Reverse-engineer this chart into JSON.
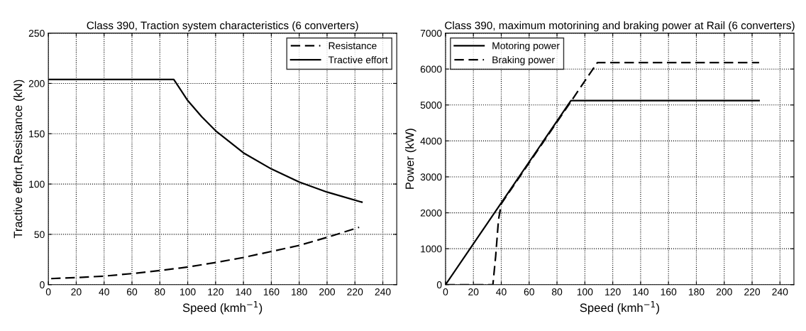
{
  "chart_data": [
    {
      "type": "line",
      "title": "Class 390, Traction system characteristics (6 converters)",
      "xlabel": "Speed (kmh$^{−1}$)",
      "ylabel": "Tractive effort,Resistance (kN)",
      "xlim": [
        0,
        250
      ],
      "xticks": [
        0,
        20,
        40,
        60,
        80,
        100,
        120,
        140,
        160,
        180,
        200,
        220,
        240
      ],
      "ylim": [
        0,
        250
      ],
      "yticks": [
        0,
        50,
        100,
        150,
        200,
        250
      ],
      "grid": true,
      "legend": "top right",
      "series": [
        {
          "name": "Resistance",
          "color": "#000000",
          "line_style": "dashed",
          "x": [
            2,
            20,
            40,
            60,
            80,
            100,
            120,
            140,
            160,
            180,
            200,
            223
          ],
          "values": [
            6,
            7,
            8.5,
            11,
            14,
            17.5,
            22,
            27,
            33,
            39,
            47,
            57
          ]
        },
        {
          "name": "Tractive effort",
          "color": "#000000",
          "line_style": "solid",
          "x": [
            0,
            90,
            100,
            110,
            120,
            140,
            160,
            180,
            200,
            225
          ],
          "values": [
            204,
            204,
            183,
            167,
            153,
            131,
            115,
            102,
            92,
            82
          ]
        }
      ]
    },
    {
      "type": "line",
      "title": "Class 390, maximum motorining and braking power at Rail (6 converters)",
      "xlabel": "Speed (kmh$^{−1}$)",
      "ylabel": "Power (kW)",
      "xlim": [
        0,
        250
      ],
      "xticks": [
        0,
        20,
        40,
        60,
        80,
        100,
        120,
        140,
        160,
        180,
        200,
        220,
        240
      ],
      "ylim": [
        0,
        7000
      ],
      "yticks": [
        0,
        1000,
        2000,
        3000,
        4000,
        5000,
        6000,
        7000
      ],
      "grid": true,
      "legend": "top left",
      "series": [
        {
          "name": "Motoring power",
          "color": "#000000",
          "line_style": "solid",
          "x": [
            0,
            90,
            225
          ],
          "values": [
            0,
            5120,
            5120
          ]
        },
        {
          "name": "Braking power",
          "color": "#000000",
          "line_style": "dashed",
          "x": [
            0,
            34,
            36,
            38,
            40,
            109,
            225
          ],
          "values": [
            0,
            0,
            800,
            1800,
            2250,
            6180,
            6180
          ]
        }
      ]
    }
  ]
}
